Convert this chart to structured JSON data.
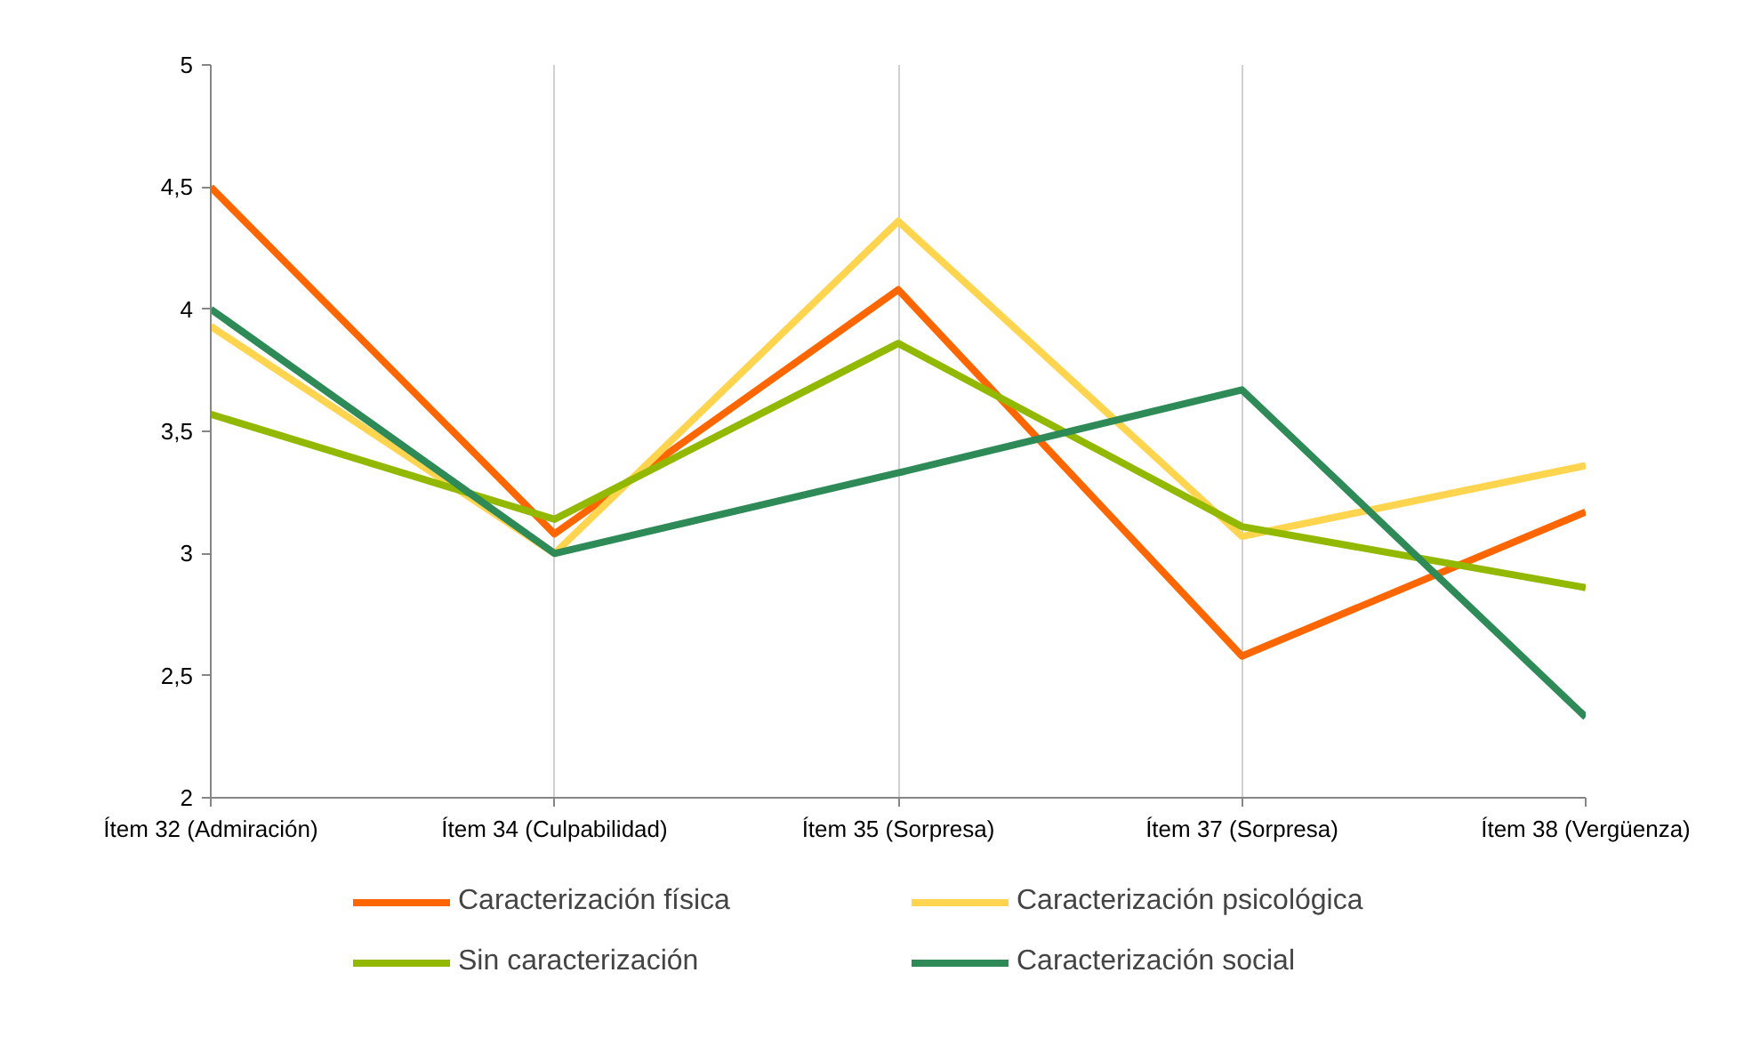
{
  "chart_data": {
    "type": "line",
    "categories": [
      "Ítem 32 (Admiración)",
      "Ítem 34 (Culpabilidad)",
      "Ítem 35 (Sorpresa)",
      "Ítem 37 (Sorpresa)",
      "Ítem 38 (Vergüenza)"
    ],
    "series": [
      {
        "name": "Caracterización física",
        "color": "#ff6600",
        "values": [
          4.5,
          3.08,
          4.08,
          2.58,
          3.17
        ]
      },
      {
        "name": "Caracterización psicológica",
        "color": "#ffd44f",
        "values": [
          3.93,
          3.0,
          4.36,
          3.07,
          3.36
        ]
      },
      {
        "name": "Sin caracterización",
        "color": "#92b900",
        "values": [
          3.57,
          3.14,
          3.86,
          3.11,
          2.86
        ]
      },
      {
        "name": "Caracterización social",
        "color": "#2e8b57",
        "values": [
          4.0,
          3.0,
          3.33,
          3.67,
          2.33
        ]
      }
    ],
    "ylim": [
      2,
      5
    ],
    "yticks": [
      2,
      {
        "value": 2.5,
        "label": "2,5"
      },
      3,
      {
        "value": 3.5,
        "label": "3,5"
      },
      4,
      {
        "value": 4.5,
        "label": "4,5"
      },
      5
    ],
    "grid": "x",
    "legend": "bottom",
    "marker": "none",
    "line_style": "solid"
  }
}
